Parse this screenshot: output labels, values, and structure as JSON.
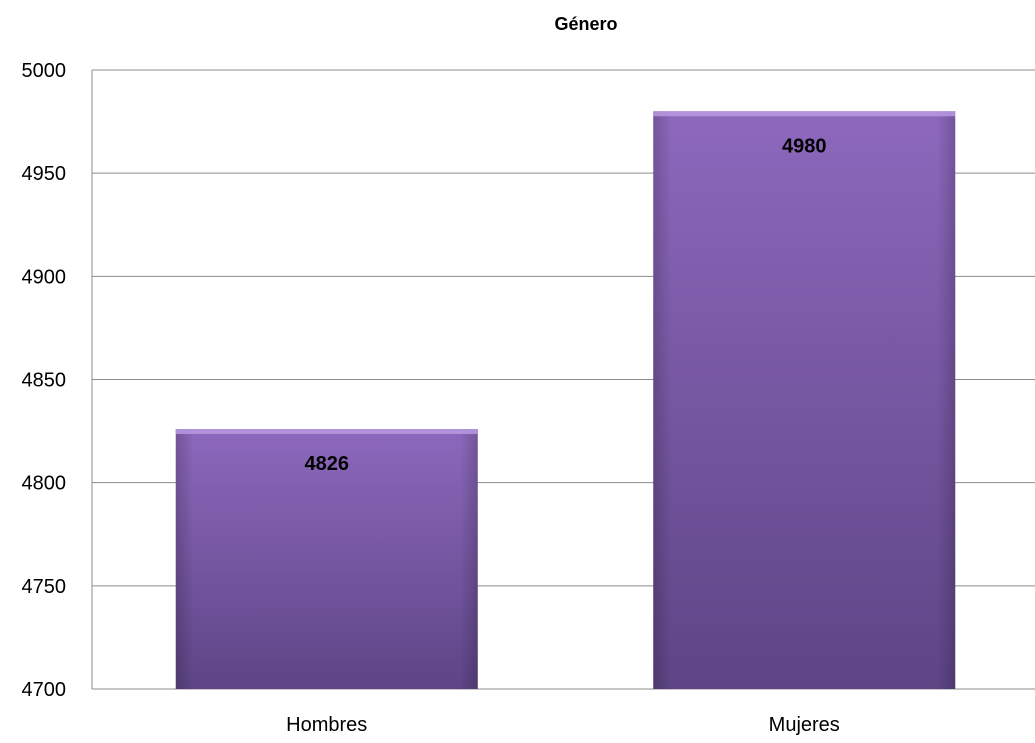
{
  "chart_data": {
    "type": "bar",
    "title": "Género",
    "categories": [
      "Hombres",
      "Mujeres"
    ],
    "values": [
      4826,
      4980
    ],
    "data_labels": [
      "4826",
      "4980"
    ],
    "xlabel": "",
    "ylabel": "",
    "ylim": [
      4700,
      5000
    ],
    "yticks": [
      4700,
      4750,
      4800,
      4850,
      4900,
      4950,
      5000
    ],
    "ytick_labels": [
      "4700",
      "4750",
      "4800",
      "4850",
      "4900",
      "4950",
      "5000"
    ],
    "grid": true,
    "legend": "none",
    "colors": {
      "bar_top": "#8d68bd",
      "bar_bottom": "#5e4586",
      "bar_edge": "#b79ae0",
      "gridline": "#8c8c8c"
    }
  }
}
